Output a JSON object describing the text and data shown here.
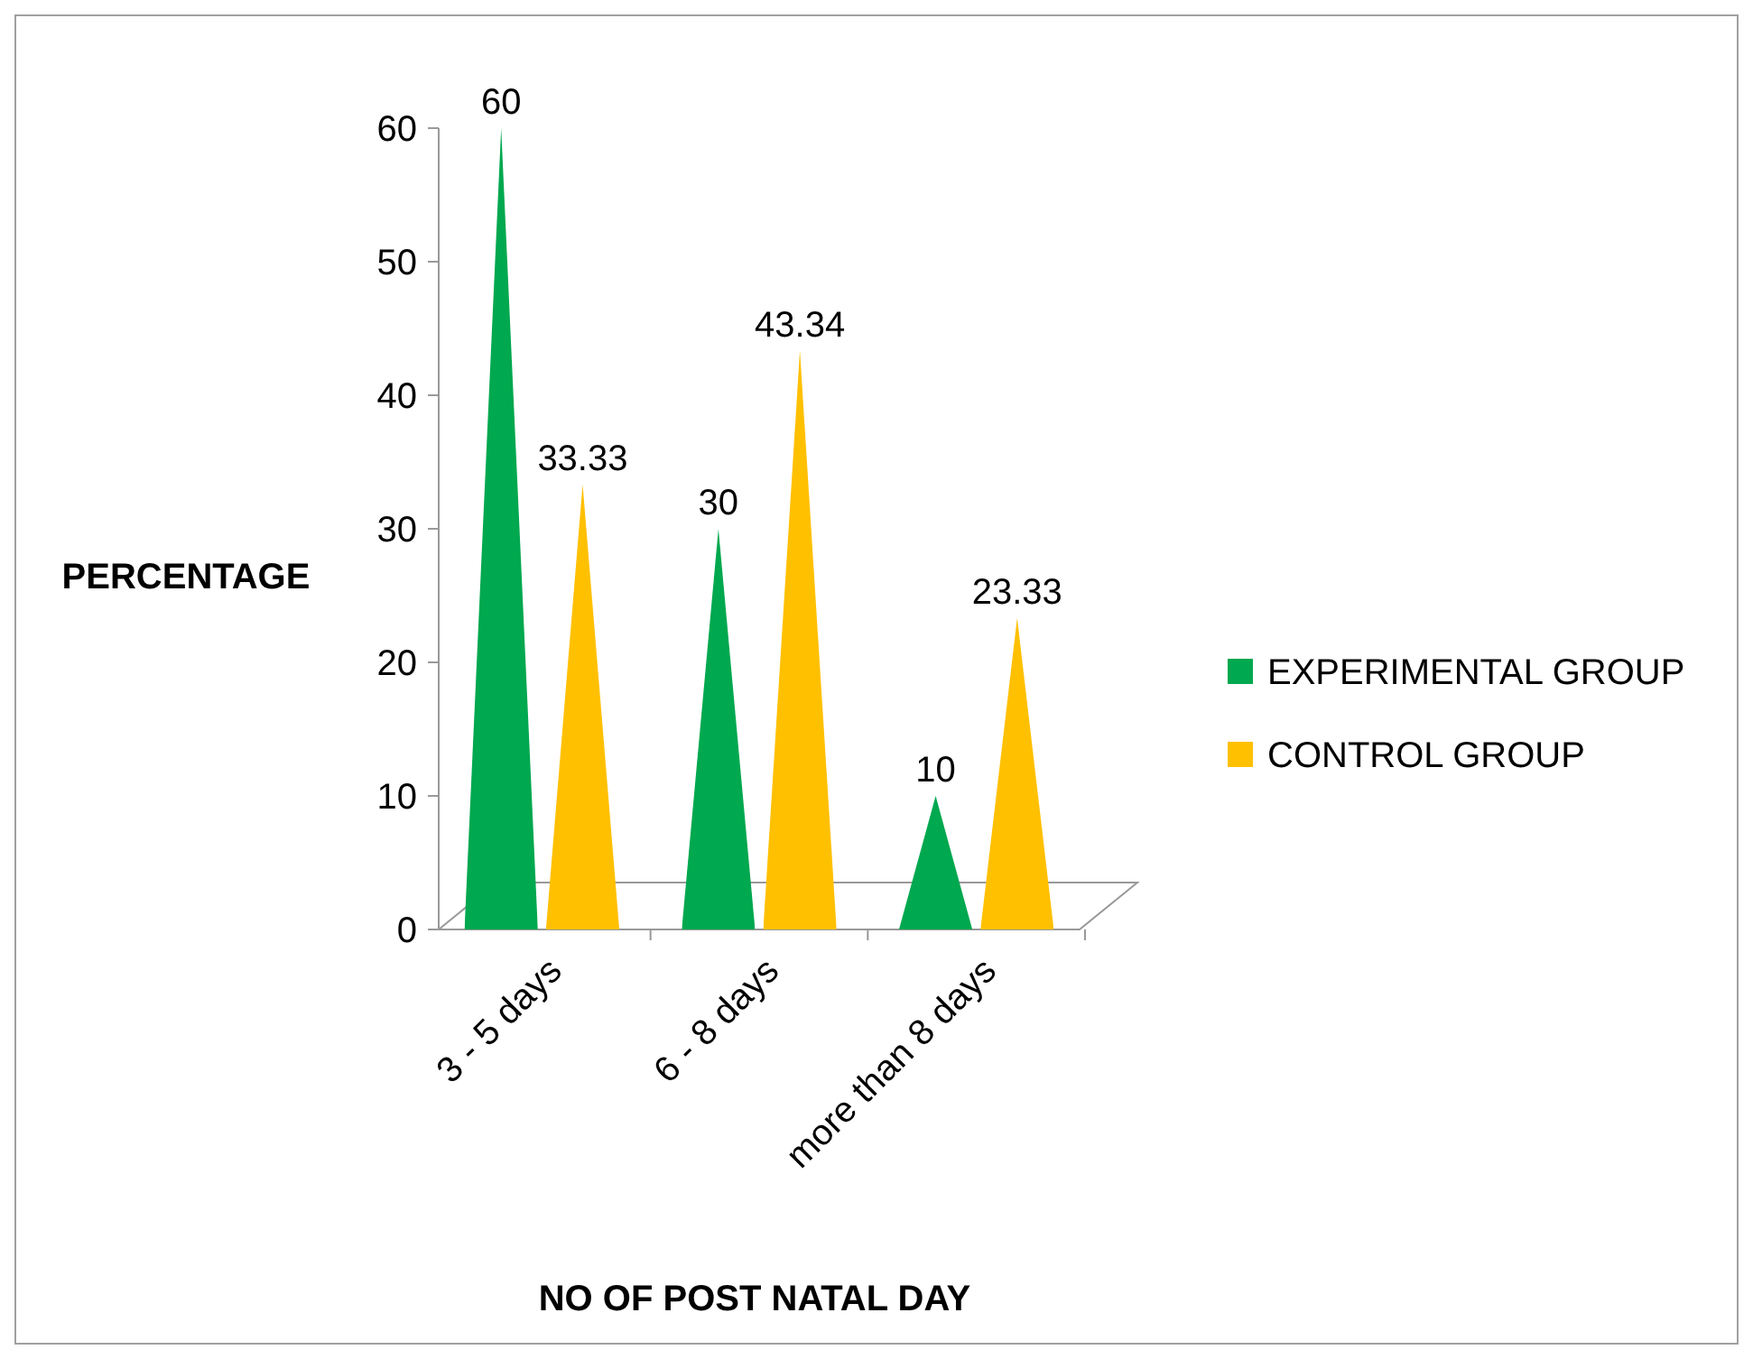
{
  "chart_data": {
    "type": "bar",
    "xlabel": "NO OF POST NATAL DAY",
    "ylabel": "PERCENTAGE",
    "categories": [
      "3 - 5 days",
      "6 - 8 days",
      "more than 8 days"
    ],
    "series": [
      {
        "name": "EXPERIMENTAL GROUP",
        "color": "#00a84f",
        "values": [
          60,
          30,
          10
        ]
      },
      {
        "name": "CONTROL GROUP",
        "color": "#ffc000",
        "values": [
          33.33,
          43.34,
          23.33
        ]
      }
    ],
    "ylim": [
      0,
      60
    ],
    "yticks": [
      0,
      10,
      20,
      30,
      40,
      50,
      60
    ],
    "data_labels": true,
    "legend": "right",
    "grid": false
  }
}
